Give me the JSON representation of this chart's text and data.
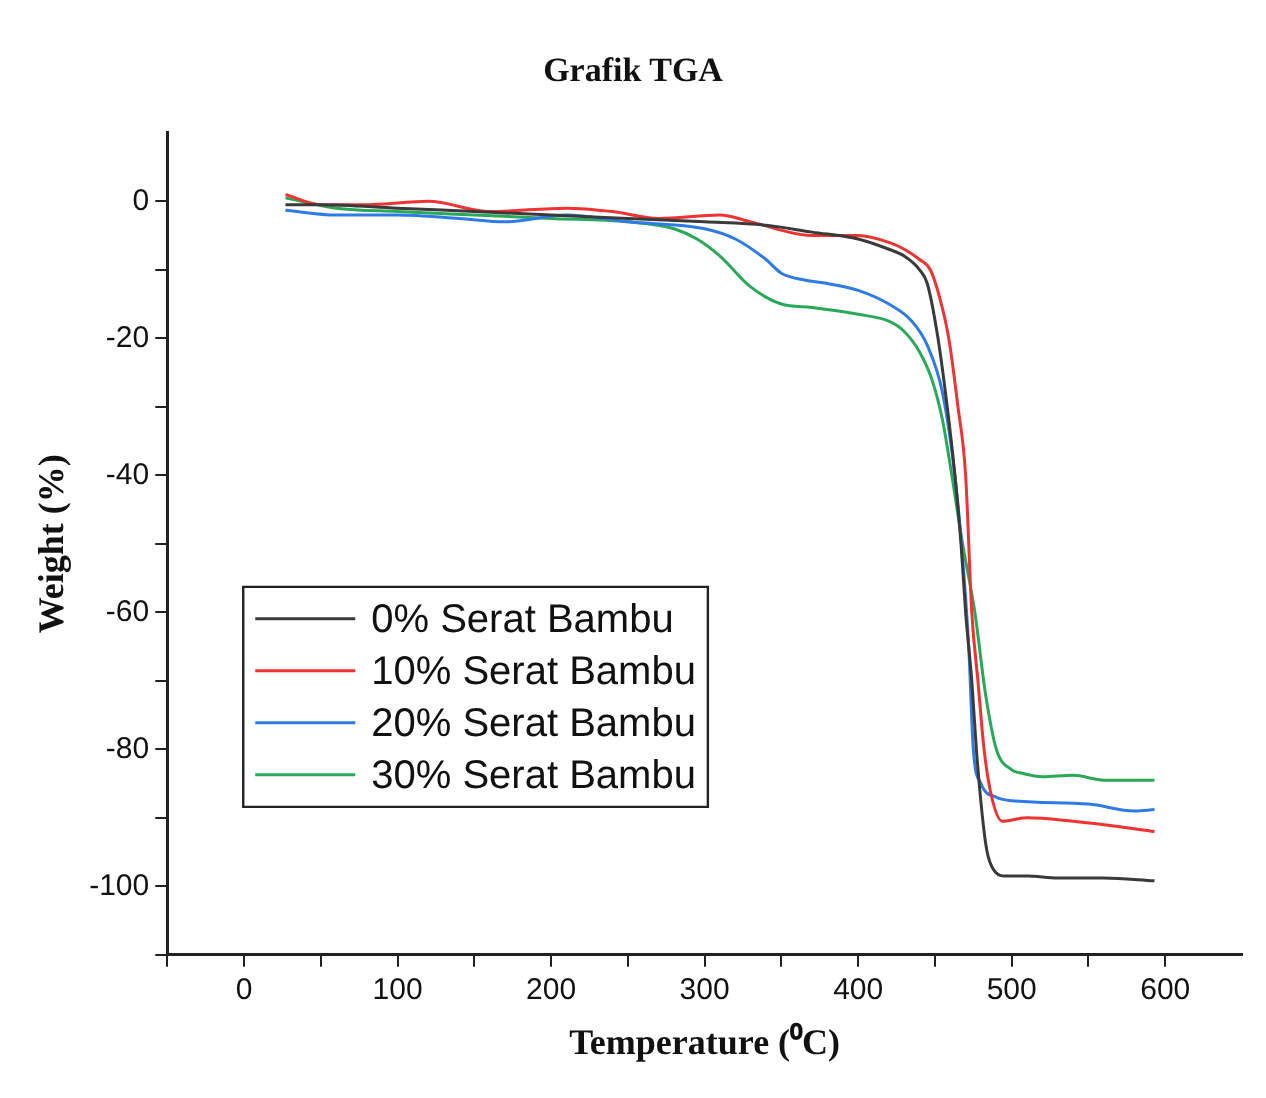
{
  "chart_data": {
    "type": "line",
    "title": "Grafik TGA",
    "xlabel": "Temperature (⁰C)",
    "ylabel": "Weight (%)",
    "xlim": [
      -50,
      650
    ],
    "xticks": [
      {
        "value": -50,
        "label": null
      },
      0,
      {
        "value": 50,
        "label": null
      },
      100,
      {
        "value": 150,
        "label": null
      },
      200,
      {
        "value": 250,
        "label": null
      },
      300,
      {
        "value": 350,
        "label": null
      },
      400,
      {
        "value": 450,
        "label": null
      },
      500,
      {
        "value": 550,
        "label": null
      },
      600
    ],
    "ylim": [
      -110,
      10
    ],
    "yticks": [
      {
        "value": -110,
        "label": null
      },
      -100,
      {
        "value": -90,
        "label": null
      },
      -80,
      {
        "value": -70,
        "label": null
      },
      -60,
      {
        "value": -50,
        "label": null
      },
      -40,
      {
        "value": -30,
        "label": null
      },
      -20,
      {
        "value": -10,
        "label": null
      },
      0
    ],
    "grid": false,
    "legend": "bottom left",
    "marker": "none",
    "line_style": "solid",
    "series": [
      {
        "name": "0% Serat Bambu",
        "color": "#3a3a3a",
        "x": [
          27,
          50,
          100,
          150,
          200,
          250,
          300,
          340,
          370,
          400,
          420,
          430,
          440,
          445,
          452,
          458,
          463,
          467,
          470,
          474,
          477,
          481,
          484,
          488,
          495,
          510,
          530,
          560,
          593
        ],
        "values": [
          -0.5,
          -0.5,
          -1,
          -1.5,
          -2,
          -2.5,
          -3,
          -3.5,
          -4.5,
          -5.5,
          -7,
          -8,
          -10,
          -12,
          -20,
          -30,
          -40,
          -50,
          -60,
          -70,
          -80,
          -90,
          -95,
          -97.5,
          -98.5,
          -98.5,
          -98.8,
          -98.8,
          -99.2
        ]
      },
      {
        "name": "10% Serat Bambu",
        "color": "#ee3333",
        "x": [
          27,
          50,
          80,
          120,
          160,
          210,
          240,
          270,
          310,
          330,
          370,
          400,
          420,
          430,
          440,
          447,
          453,
          459,
          465,
          470,
          474,
          478,
          482,
          487,
          494,
          510,
          540,
          560,
          593
        ],
        "values": [
          1,
          -0.5,
          -0.5,
          0,
          -1.5,
          -1,
          -1.5,
          -2.5,
          -2,
          -3,
          -5,
          -5,
          -6,
          -7,
          -8.5,
          -10,
          -14,
          -20,
          -30,
          -40,
          -60,
          -70,
          -80,
          -87,
          -90.5,
          -90,
          -90.5,
          -91,
          -92
        ]
      },
      {
        "name": "20% Serat Bambu",
        "color": "#2f7be6",
        "x": [
          27,
          60,
          100,
          140,
          170,
          210,
          250,
          300,
          320,
          340,
          350,
          365,
          380,
          400,
          420,
          435,
          445,
          455,
          463,
          468,
          472,
          475,
          480,
          490,
          500,
          550,
          580,
          593
        ],
        "values": [
          -1.3,
          -2,
          -2,
          -2.5,
          -3,
          -2,
          -3,
          -4,
          -5.5,
          -8.5,
          -10.5,
          -11.5,
          -12,
          -13,
          -15,
          -17.5,
          -21,
          -28,
          -40,
          -52,
          -65,
          -80,
          -85,
          -87,
          -87.5,
          -88,
          -89,
          -88.8
        ]
      },
      {
        "name": "30% Serat Bambu",
        "color": "#2aa85a",
        "x": [
          27,
          60,
          100,
          150,
          200,
          250,
          280,
          295,
          310,
          330,
          350,
          370,
          400,
          420,
          430,
          440,
          448,
          455,
          461,
          468,
          476,
          483,
          490,
          500,
          507,
          520,
          540,
          560,
          593
        ],
        "values": [
          0.5,
          -1,
          -1.5,
          -2,
          -2.5,
          -3,
          -4,
          -5.5,
          -8,
          -12.5,
          -15,
          -15.5,
          -16.5,
          -17.5,
          -19,
          -22,
          -26,
          -32,
          -40,
          -50,
          -60,
          -72,
          -80,
          -83,
          -83.5,
          -84,
          -83.8,
          -84.5,
          -84.5
        ]
      }
    ]
  }
}
